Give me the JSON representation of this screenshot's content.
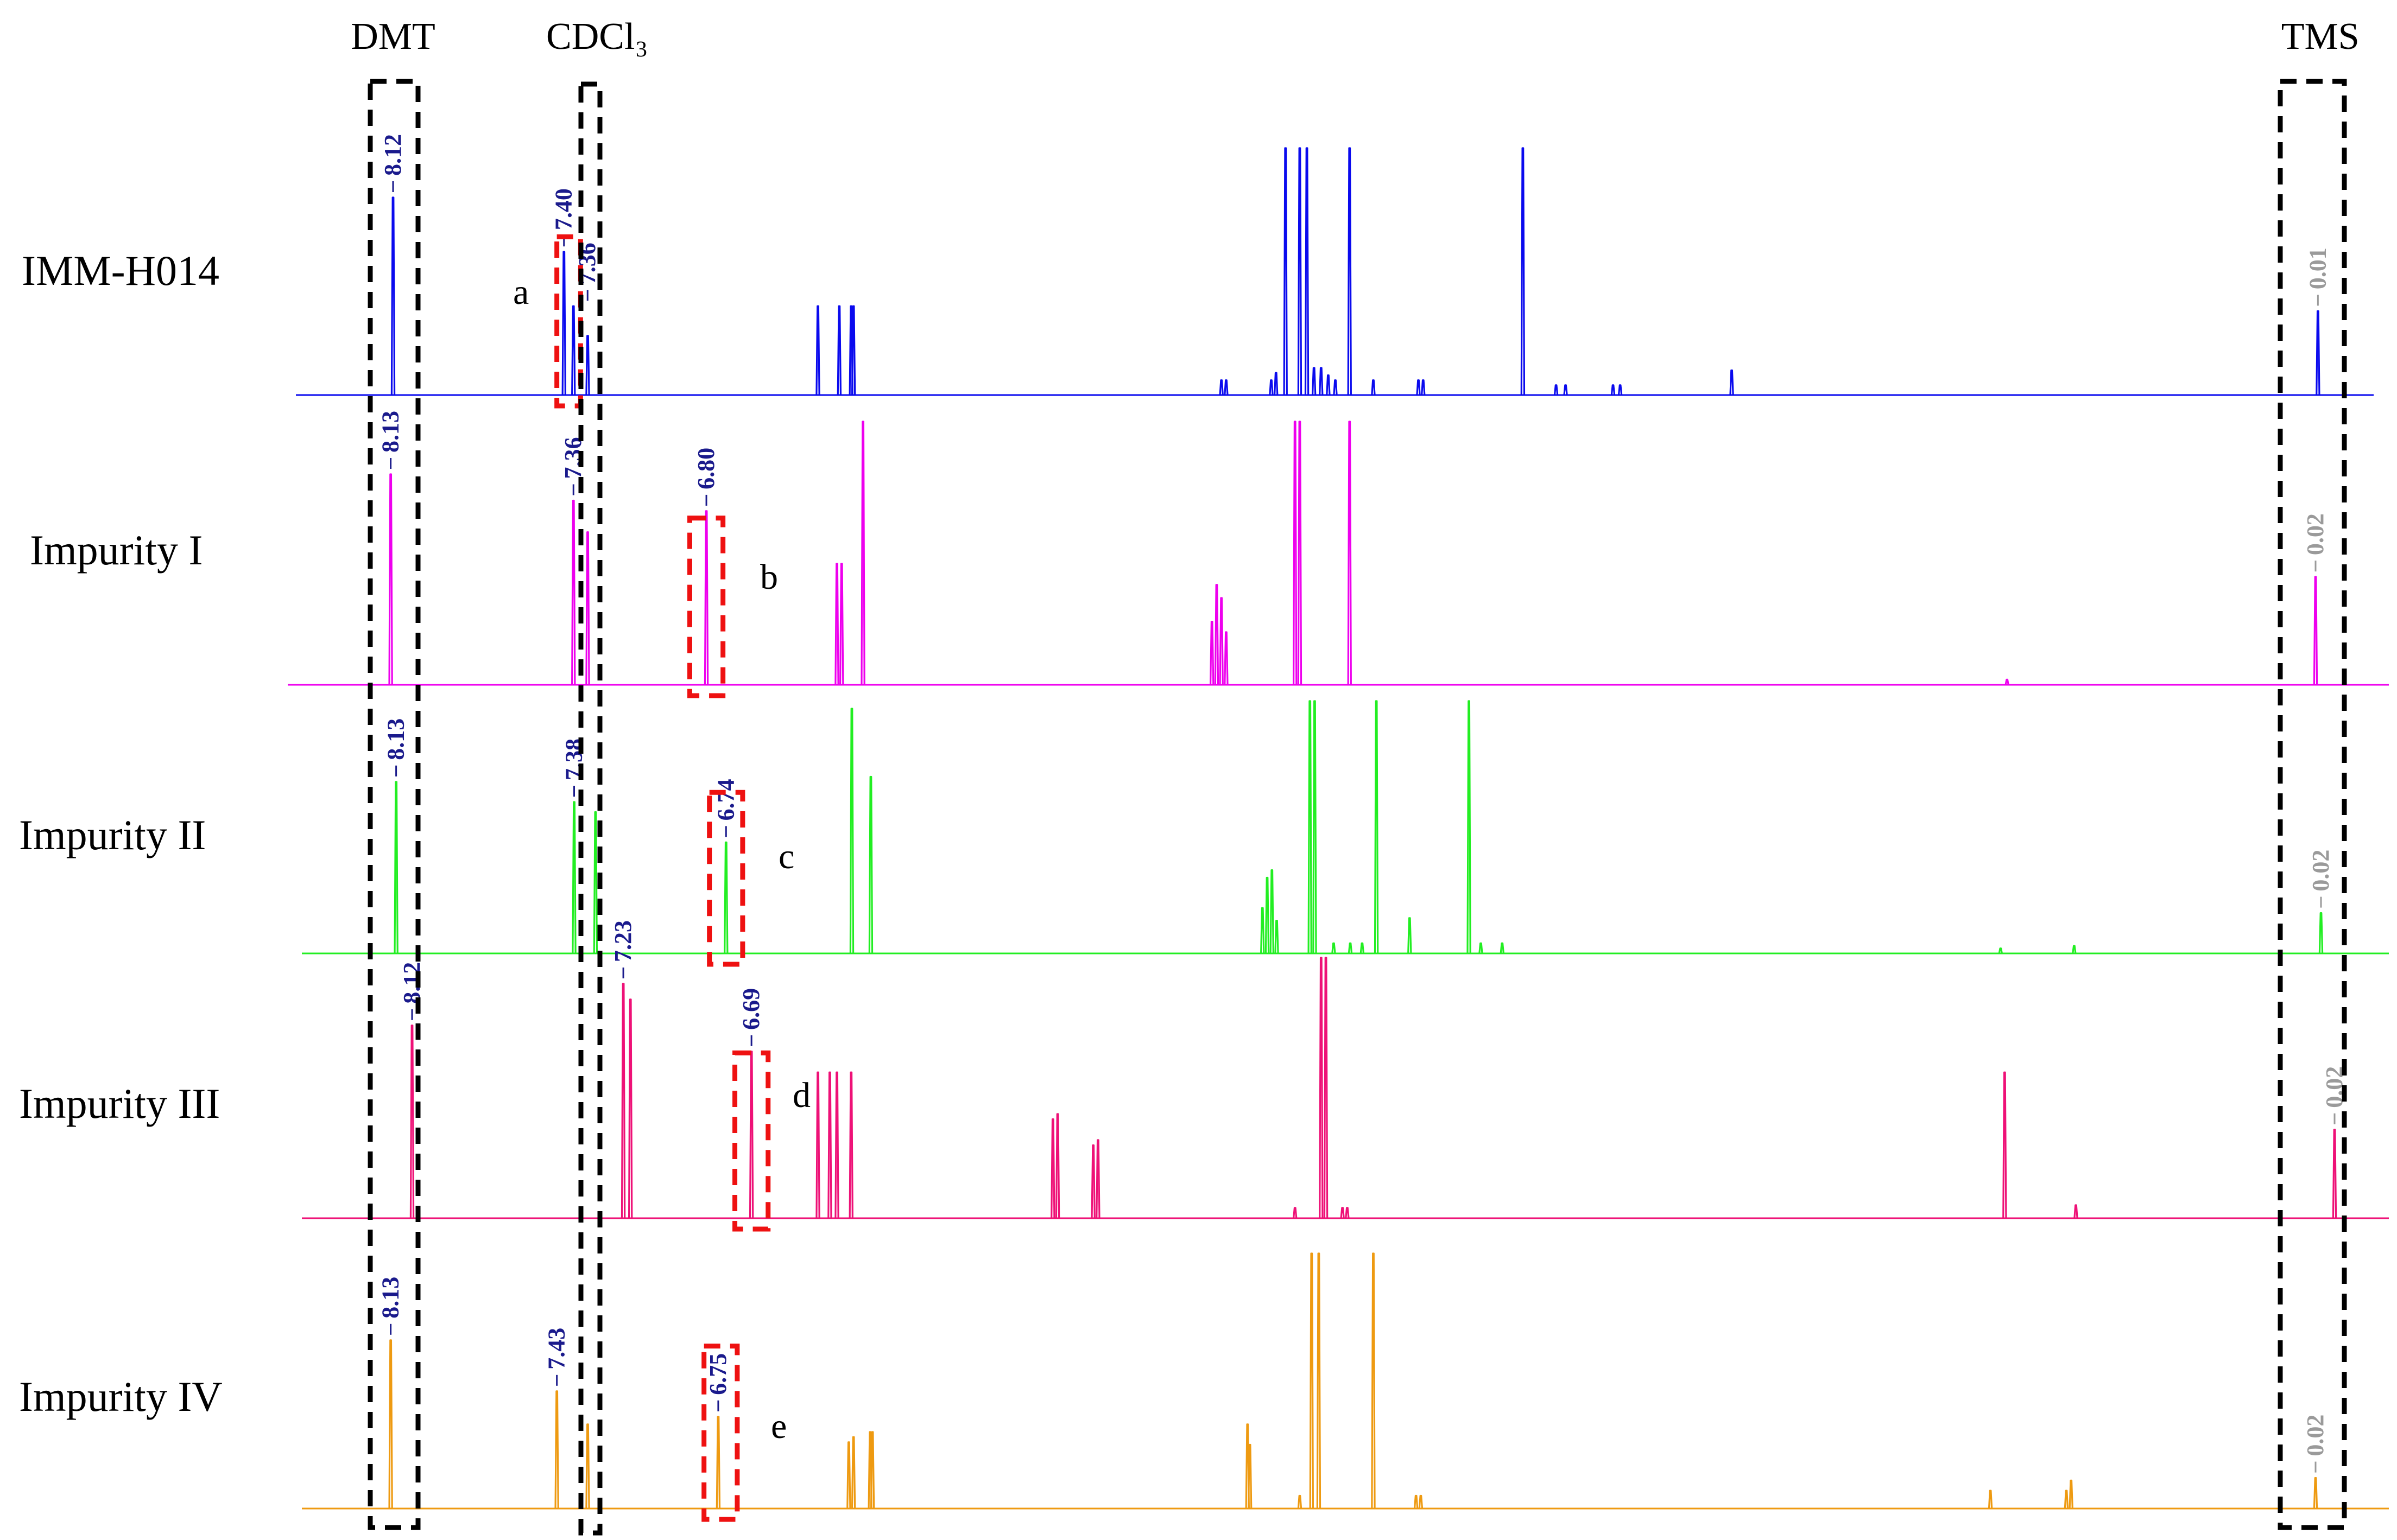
{
  "chart_data": {
    "type": "line",
    "title": "",
    "xlabel": "",
    "ylabel": "",
    "grid": false,
    "x_axis": {
      "unit": "ppm",
      "reversed": true,
      "xlim": [
        8.3,
        -0.1
      ]
    },
    "region_labels": [
      {
        "label": "DMT",
        "center_ppm": 8.12
      },
      {
        "label": "CDCl₃",
        "center_ppm": 7.26
      },
      {
        "label": "TMS",
        "center_ppm": 0.0
      }
    ],
    "series": [
      {
        "name": "IMM-H014",
        "color": "#0a0aee",
        "box_letter": "a",
        "box_ppm": [
          7.43,
          7.33
        ],
        "peaks": [
          {
            "ppm": 8.12,
            "height": 0.8,
            "label": "8.12"
          },
          {
            "ppm": 7.4,
            "height": 0.58,
            "label": "7.40"
          },
          {
            "ppm": 7.36,
            "height": 0.36,
            "label": "7.36"
          },
          {
            "ppm": 7.3,
            "height": 0.24
          },
          {
            "ppm": 6.33,
            "height": 0.36
          },
          {
            "ppm": 6.24,
            "height": 0.36
          },
          {
            "ppm": 6.19,
            "height": 0.36
          },
          {
            "ppm": 6.18,
            "height": 0.36
          },
          {
            "ppm": 4.63,
            "height": 0.06
          },
          {
            "ppm": 4.61,
            "height": 0.06
          },
          {
            "ppm": 4.42,
            "height": 0.06
          },
          {
            "ppm": 4.4,
            "height": 0.09
          },
          {
            "ppm": 4.36,
            "height": 1.0
          },
          {
            "ppm": 4.3,
            "height": 1.0
          },
          {
            "ppm": 4.27,
            "height": 1.0
          },
          {
            "ppm": 4.24,
            "height": 0.11
          },
          {
            "ppm": 4.21,
            "height": 0.11
          },
          {
            "ppm": 4.18,
            "height": 0.08
          },
          {
            "ppm": 4.15,
            "height": 0.06
          },
          {
            "ppm": 4.09,
            "height": 1.0
          },
          {
            "ppm": 3.99,
            "height": 0.06
          },
          {
            "ppm": 3.8,
            "height": 0.06
          },
          {
            "ppm": 3.78,
            "height": 0.06
          },
          {
            "ppm": 3.36,
            "height": 1.0
          },
          {
            "ppm": 3.22,
            "height": 0.04
          },
          {
            "ppm": 3.18,
            "height": 0.04
          },
          {
            "ppm": 2.98,
            "height": 0.04
          },
          {
            "ppm": 2.95,
            "height": 0.04
          },
          {
            "ppm": 2.48,
            "height": 0.1
          },
          {
            "ppm": 0.01,
            "height": 0.34,
            "label": "0.01",
            "label_color": "#9a9a9a"
          }
        ]
      },
      {
        "name": "Impurity I",
        "color": "#ee00ee",
        "box_letter": "b",
        "box_ppm": [
          6.87,
          6.73
        ],
        "peaks": [
          {
            "ppm": 8.13,
            "height": 0.8,
            "label": "8.13"
          },
          {
            "ppm": 7.36,
            "height": 0.7,
            "label": "7.36"
          },
          {
            "ppm": 7.3,
            "height": 0.58
          },
          {
            "ppm": 6.8,
            "height": 0.66,
            "label": "6.80"
          },
          {
            "ppm": 6.25,
            "height": 0.46
          },
          {
            "ppm": 6.23,
            "height": 0.46
          },
          {
            "ppm": 6.14,
            "height": 1.0
          },
          {
            "ppm": 4.67,
            "height": 0.24
          },
          {
            "ppm": 4.65,
            "height": 0.38
          },
          {
            "ppm": 4.63,
            "height": 0.33
          },
          {
            "ppm": 4.61,
            "height": 0.2
          },
          {
            "ppm": 4.32,
            "height": 1.0
          },
          {
            "ppm": 4.3,
            "height": 1.0
          },
          {
            "ppm": 4.09,
            "height": 1.0
          },
          {
            "ppm": 1.32,
            "height": 0.02
          },
          {
            "ppm": 0.02,
            "height": 0.41,
            "label": "0.02",
            "label_color": "#9a9a9a"
          }
        ]
      },
      {
        "name": "Impurity II",
        "color": "#22ee22",
        "box_letter": "c",
        "box_ppm": [
          6.81,
          6.67
        ],
        "peaks": [
          {
            "ppm": 8.13,
            "height": 0.68,
            "label": "8.13"
          },
          {
            "ppm": 7.38,
            "height": 0.6,
            "label": "7.38"
          },
          {
            "ppm": 7.29,
            "height": 0.56
          },
          {
            "ppm": 6.74,
            "height": 0.44,
            "label": "6.74"
          },
          {
            "ppm": 6.21,
            "height": 0.97
          },
          {
            "ppm": 6.13,
            "height": 0.7
          },
          {
            "ppm": 4.48,
            "height": 0.18
          },
          {
            "ppm": 4.46,
            "height": 0.3
          },
          {
            "ppm": 4.44,
            "height": 0.33
          },
          {
            "ppm": 4.42,
            "height": 0.13
          },
          {
            "ppm": 4.28,
            "height": 1.0
          },
          {
            "ppm": 4.26,
            "height": 1.0
          },
          {
            "ppm": 4.18,
            "height": 0.04
          },
          {
            "ppm": 4.11,
            "height": 0.04
          },
          {
            "ppm": 4.06,
            "height": 0.04
          },
          {
            "ppm": 4.0,
            "height": 1.0
          },
          {
            "ppm": 3.86,
            "height": 0.14
          },
          {
            "ppm": 3.61,
            "height": 1.0
          },
          {
            "ppm": 3.56,
            "height": 0.04
          },
          {
            "ppm": 3.47,
            "height": 0.04
          },
          {
            "ppm": 1.37,
            "height": 0.02
          },
          {
            "ppm": 1.06,
            "height": 0.03
          },
          {
            "ppm": 0.02,
            "height": 0.16,
            "label": "0.02",
            "label_color": "#9a9a9a"
          }
        ]
      },
      {
        "name": "Impurity III",
        "color": "#ee1177",
        "box_letter": "d",
        "box_ppm": [
          6.76,
          6.62
        ],
        "peaks": [
          {
            "ppm": 8.12,
            "height": 0.74,
            "label": "8.12"
          },
          {
            "ppm": 7.23,
            "height": 0.9,
            "label": "7.23"
          },
          {
            "ppm": 7.2,
            "height": 0.84
          },
          {
            "ppm": 6.69,
            "height": 0.64,
            "label": "6.69"
          },
          {
            "ppm": 6.41,
            "height": 0.56
          },
          {
            "ppm": 6.36,
            "height": 0.56
          },
          {
            "ppm": 6.33,
            "height": 0.56
          },
          {
            "ppm": 6.27,
            "height": 0.56
          },
          {
            "ppm": 5.42,
            "height": 0.38
          },
          {
            "ppm": 5.4,
            "height": 0.4
          },
          {
            "ppm": 5.25,
            "height": 0.28
          },
          {
            "ppm": 5.23,
            "height": 0.3
          },
          {
            "ppm": 4.4,
            "height": 0.04
          },
          {
            "ppm": 4.29,
            "height": 1.0
          },
          {
            "ppm": 4.27,
            "height": 1.0
          },
          {
            "ppm": 4.2,
            "height": 0.04
          },
          {
            "ppm": 4.18,
            "height": 0.04
          },
          {
            "ppm": 1.41,
            "height": 0.56
          },
          {
            "ppm": 1.11,
            "height": 0.05
          },
          {
            "ppm": 0.02,
            "height": 0.34,
            "label": "0.02",
            "label_color": "#9a9a9a"
          }
        ]
      },
      {
        "name": "Impurity IV",
        "color": "#ee9a11",
        "box_letter": "e",
        "box_ppm": [
          6.81,
          6.67
        ],
        "peaks": [
          {
            "ppm": 8.13,
            "height": 0.66,
            "label": "8.13"
          },
          {
            "ppm": 7.43,
            "height": 0.46,
            "label": "7.43"
          },
          {
            "ppm": 7.3,
            "height": 0.33
          },
          {
            "ppm": 6.75,
            "height": 0.36,
            "label": "6.75"
          },
          {
            "ppm": 6.2,
            "height": 0.26
          },
          {
            "ppm": 6.18,
            "height": 0.28
          },
          {
            "ppm": 6.11,
            "height": 0.3
          },
          {
            "ppm": 6.1,
            "height": 0.3
          },
          {
            "ppm": 4.52,
            "height": 0.33
          },
          {
            "ppm": 4.51,
            "height": 0.25
          },
          {
            "ppm": 4.3,
            "height": 0.05
          },
          {
            "ppm": 4.25,
            "height": 1.0
          },
          {
            "ppm": 4.22,
            "height": 1.0
          },
          {
            "ppm": 3.99,
            "height": 1.0
          },
          {
            "ppm": 3.81,
            "height": 0.05
          },
          {
            "ppm": 3.79,
            "height": 0.05
          },
          {
            "ppm": 1.39,
            "height": 0.07
          },
          {
            "ppm": 1.07,
            "height": 0.07
          },
          {
            "ppm": 1.05,
            "height": 0.11
          },
          {
            "ppm": 0.02,
            "height": 0.12,
            "label": "0.02",
            "label_color": "#9a9a9a"
          }
        ]
      }
    ]
  }
}
